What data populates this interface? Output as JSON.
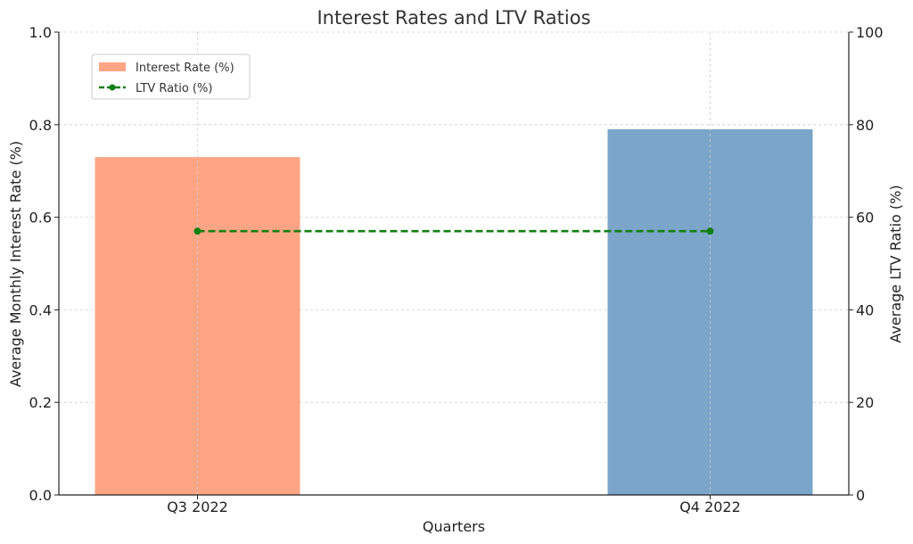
{
  "chart_data": {
    "type": "bar",
    "title": "Interest Rates and LTV Ratios",
    "xlabel": "Quarters",
    "ylabel": "Average Monthly Interest Rate (%)",
    "y2label": "Average LTV Ratio (%)",
    "categories": [
      "Q3 2022",
      "Q4 2022"
    ],
    "ylim": [
      0,
      1.0
    ],
    "y2lim": [
      0,
      100
    ],
    "yticks": [
      "0.0",
      "0.2",
      "0.4",
      "0.6",
      "0.8",
      "1.0"
    ],
    "y2ticks": [
      "0",
      "20",
      "40",
      "60",
      "80",
      "100"
    ],
    "grid": true,
    "legend_position": "top-left",
    "series": [
      {
        "name": "Interest Rate (%)",
        "type": "bar",
        "axis": "left",
        "values": [
          0.73,
          0.79
        ],
        "colors": [
          "#FFA584",
          "#7BA5C9"
        ]
      },
      {
        "name": "LTV Ratio (%)",
        "type": "line",
        "axis": "right",
        "style": "dashed",
        "marker": "circle",
        "values": [
          57,
          57
        ],
        "color": "#138013"
      }
    ]
  }
}
